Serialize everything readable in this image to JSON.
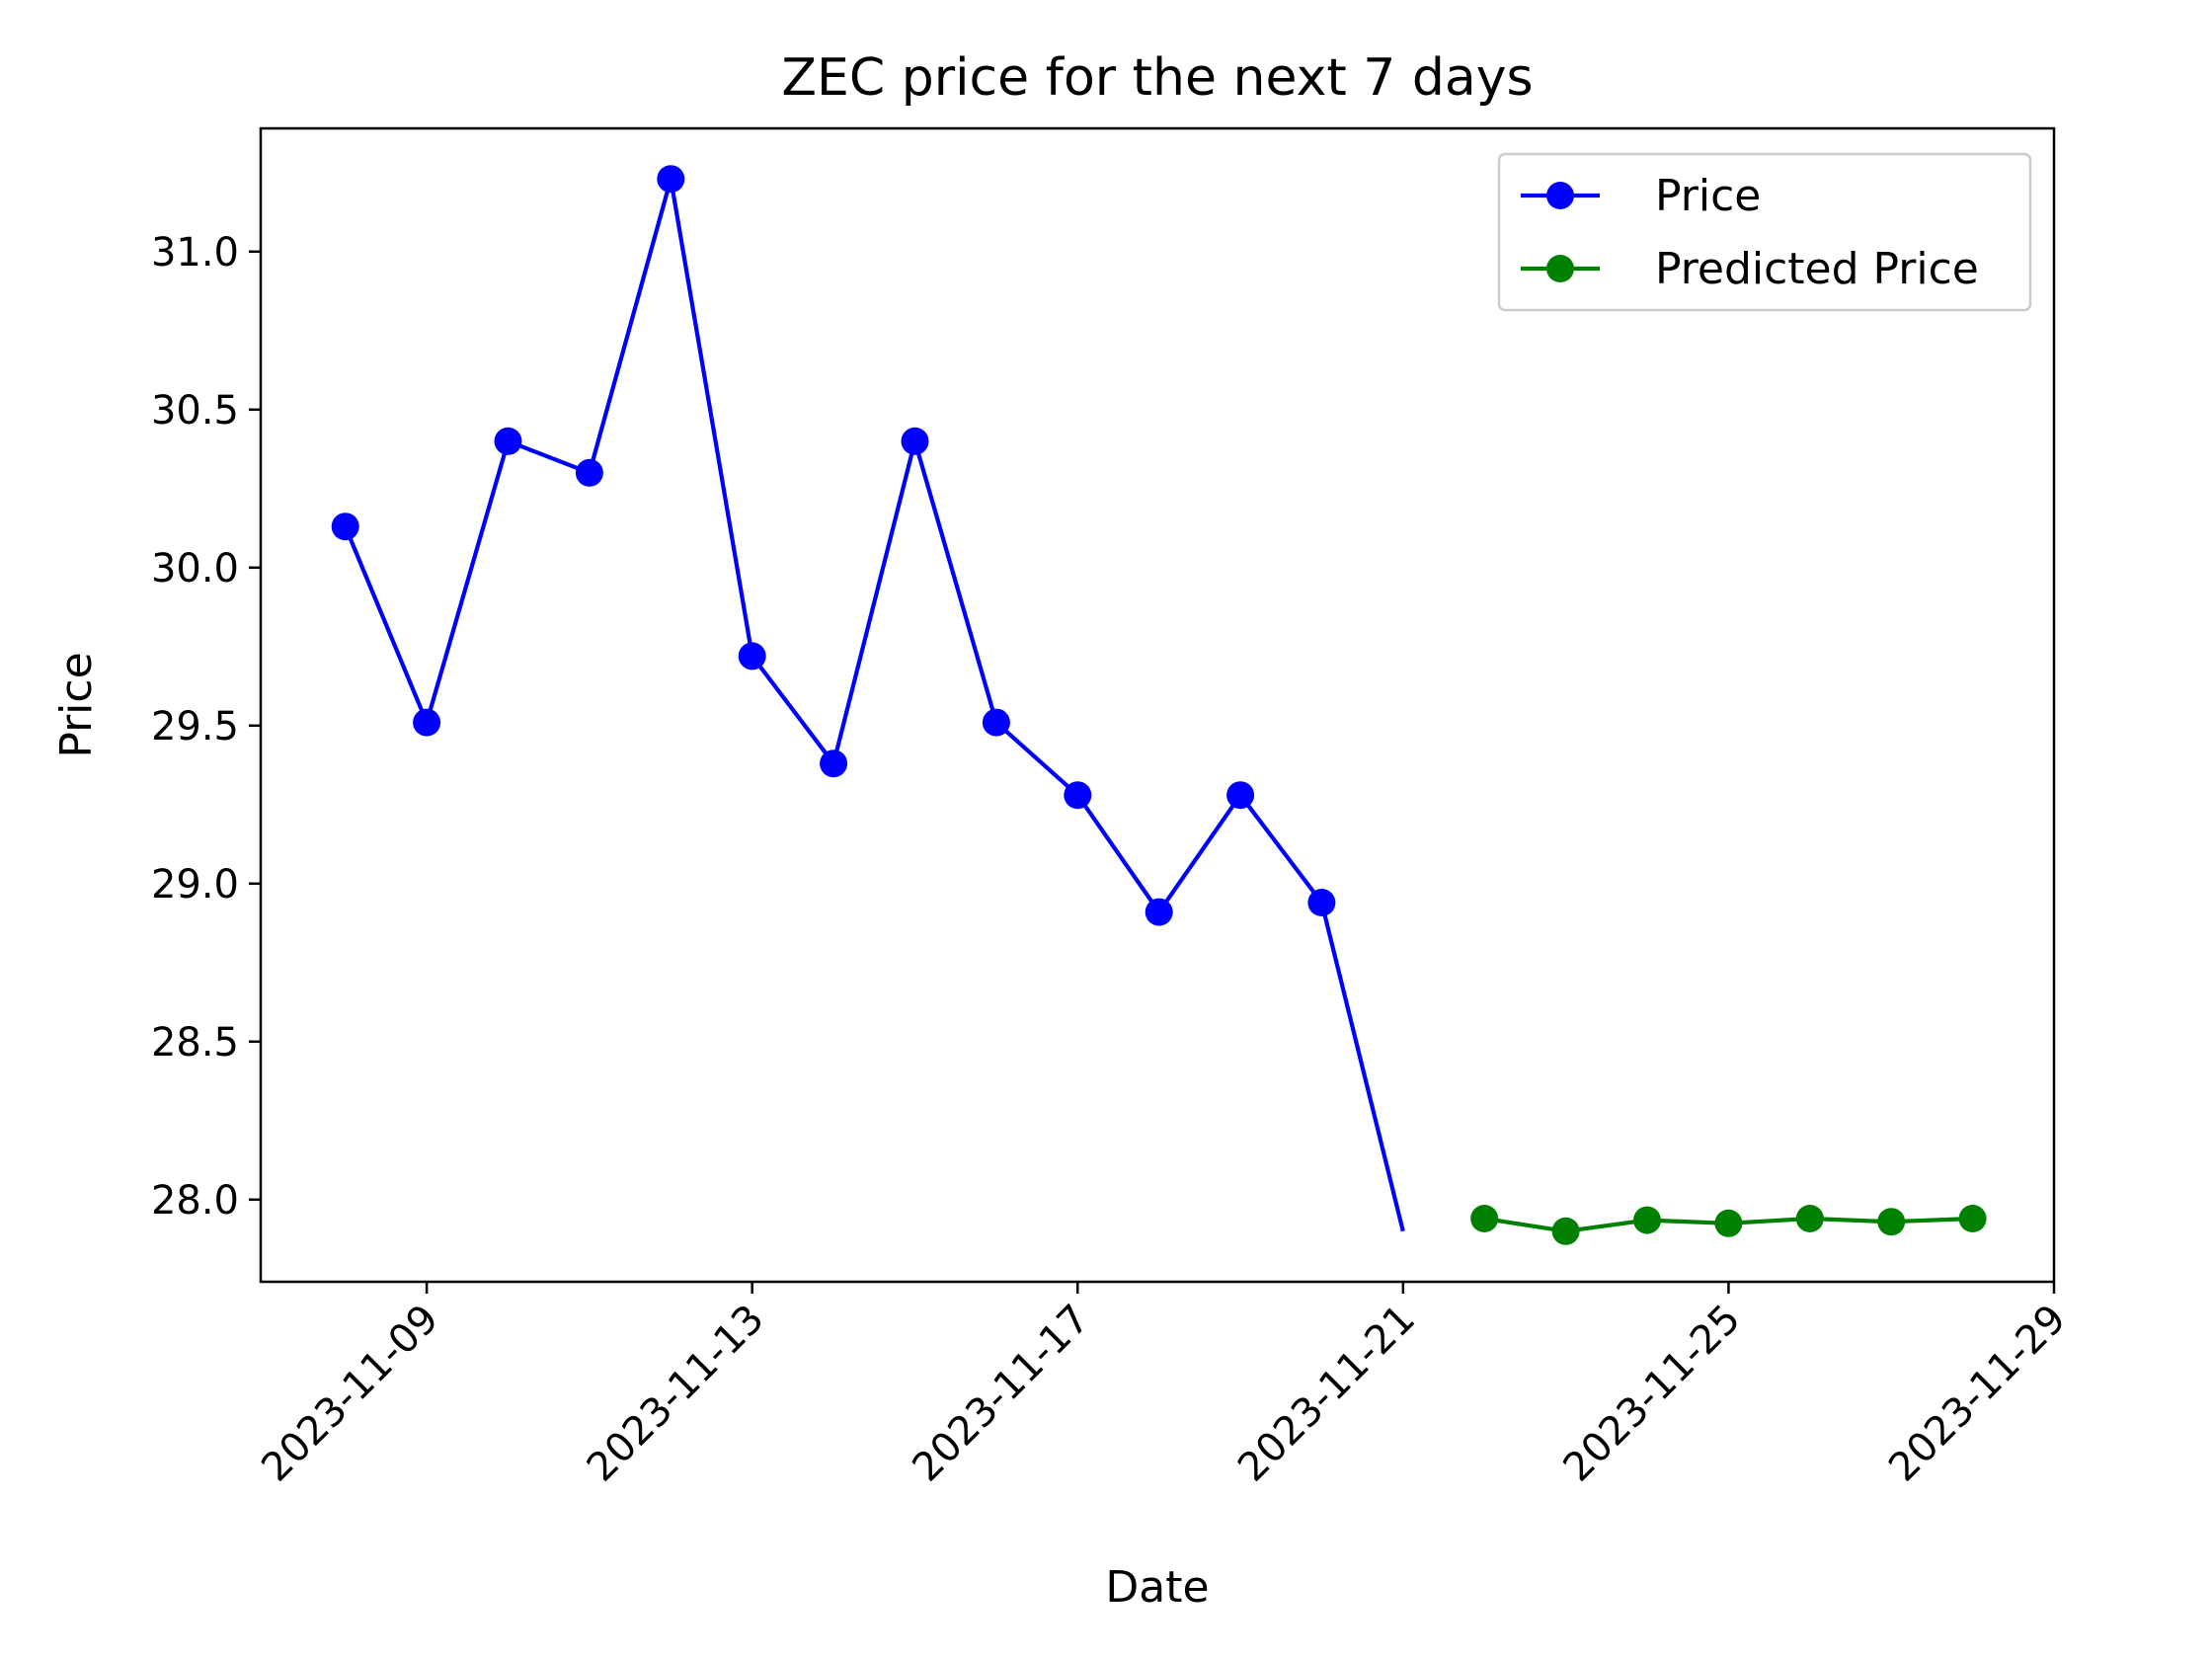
{
  "chart_data": {
    "type": "line",
    "title": "ZEC price for the next 7 days",
    "xlabel": "Date",
    "ylabel": "Price",
    "x_ticks": [
      "2023-11-09",
      "2023-11-13",
      "2023-11-17",
      "2023-11-21",
      "2023-11-25",
      "2023-11-29"
    ],
    "y_ticks": [
      "28.0",
      "28.5",
      "29.0",
      "29.5",
      "30.0",
      "30.5",
      "31.0"
    ],
    "xlim": [
      "2023-11-06T23:02",
      "2023-11-29"
    ],
    "ylim": [
      27.74,
      31.39
    ],
    "grid": false,
    "legend_position": "top-right",
    "series": [
      {
        "name": "Price",
        "color": "#0000ff",
        "x": [
          "2023-11-08",
          "2023-11-09",
          "2023-11-10",
          "2023-11-11",
          "2023-11-12",
          "2023-11-13",
          "2023-11-14",
          "2023-11-15",
          "2023-11-16",
          "2023-11-17",
          "2023-11-18",
          "2023-11-19",
          "2023-11-20",
          "2023-11-21"
        ],
        "values": [
          30.13,
          29.51,
          30.4,
          30.3,
          31.23,
          29.72,
          29.38,
          30.4,
          29.51,
          29.28,
          28.91,
          29.28,
          28.94,
          27.9
        ],
        "markers": [
          true,
          true,
          true,
          true,
          true,
          true,
          true,
          true,
          true,
          true,
          true,
          true,
          true,
          false
        ]
      },
      {
        "name": "Predicted Price",
        "color": "#008000",
        "x": [
          "2023-11-22",
          "2023-11-23",
          "2023-11-24",
          "2023-11-25",
          "2023-11-26",
          "2023-11-27",
          "2023-11-28"
        ],
        "values": [
          27.94,
          27.9,
          27.935,
          27.925,
          27.94,
          27.93,
          27.94
        ],
        "markers": [
          true,
          true,
          true,
          true,
          true,
          true,
          true
        ]
      }
    ]
  }
}
